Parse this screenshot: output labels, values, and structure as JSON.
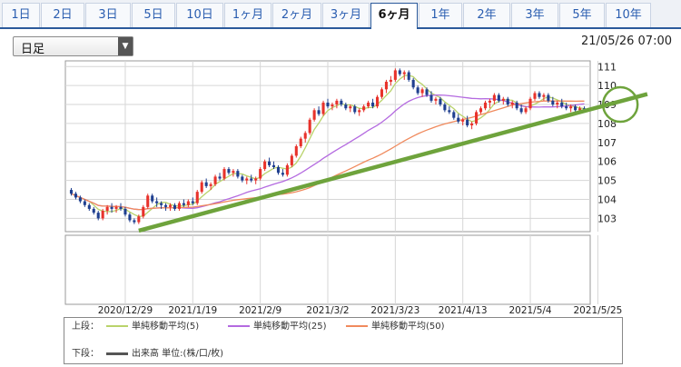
{
  "tabs": [
    "1日",
    "2日",
    "3日",
    "5日",
    "10日",
    "1ヶ月",
    "2ヶ月",
    "3ヶ月",
    "6ヶ月",
    "1年",
    "2年",
    "3年",
    "5年",
    "10年"
  ],
  "active_tab": "6ヶ月",
  "period_select": {
    "value": "日足"
  },
  "timestamp": "21/05/26 07:00",
  "colors": {
    "tab_accent": "#2b5a9b",
    "candle_up": "#e8322b",
    "candle_down": "#1f3f8f",
    "ma5": "#b9d36b",
    "ma25": "#b46ae0",
    "ma50": "#f08a5d",
    "trendline": "#6ea33c",
    "circle": "#6ea33c"
  },
  "legend": {
    "upper_label": "上段：",
    "lower_label": "下段：",
    "ma5_label": "単純移動平均(5)",
    "ma25_label": "単純移動平均(25)",
    "ma50_label": "単純移動平均(50)",
    "volume_label": "出来高 単位:(株/口/枚)"
  },
  "chart_data": {
    "type": "line",
    "title": "",
    "xlabel": "",
    "ylabel": "",
    "ylim": [
      102.3,
      111.3
    ],
    "y_ticks": [
      103,
      104,
      105,
      106,
      107,
      108,
      109,
      110,
      111
    ],
    "x_tick_labels": [
      "2020/12/29",
      "2021/1/19",
      "2021/2/9",
      "2021/3/2",
      "2021/3/23",
      "2021/4/13",
      "2021/5/4",
      "2021/5/25"
    ],
    "x_tick_index": [
      12,
      27,
      42,
      57,
      72,
      87,
      102,
      117
    ],
    "grid": true,
    "candles_ohlc": [
      [
        104.5,
        104.6,
        104.2,
        104.3
      ],
      [
        104.3,
        104.4,
        104.0,
        104.1
      ],
      [
        104.1,
        104.2,
        103.8,
        103.9
      ],
      [
        103.9,
        104.0,
        103.6,
        103.7
      ],
      [
        103.7,
        103.8,
        103.4,
        103.5
      ],
      [
        103.5,
        103.6,
        103.2,
        103.3
      ],
      [
        103.3,
        103.4,
        102.9,
        103.0
      ],
      [
        103.0,
        103.5,
        102.9,
        103.4
      ],
      [
        103.4,
        103.7,
        103.2,
        103.6
      ],
      [
        103.6,
        103.8,
        103.3,
        103.5
      ],
      [
        103.5,
        103.7,
        103.3,
        103.6
      ],
      [
        103.6,
        103.8,
        103.4,
        103.5
      ],
      [
        103.5,
        103.6,
        103.1,
        103.2
      ],
      [
        103.2,
        103.3,
        102.8,
        102.9
      ],
      [
        102.9,
        103.0,
        102.7,
        102.8
      ],
      [
        102.8,
        103.2,
        102.7,
        103.1
      ],
      [
        103.1,
        103.7,
        103.0,
        103.6
      ],
      [
        103.6,
        104.3,
        103.5,
        104.2
      ],
      [
        104.2,
        104.3,
        103.8,
        103.9
      ],
      [
        103.9,
        104.1,
        103.6,
        103.8
      ],
      [
        103.8,
        103.9,
        103.5,
        103.7
      ],
      [
        103.7,
        103.8,
        103.4,
        103.6
      ],
      [
        103.6,
        103.8,
        103.4,
        103.7
      ],
      [
        103.7,
        103.8,
        103.4,
        103.5
      ],
      [
        103.5,
        103.9,
        103.4,
        103.8
      ],
      [
        103.8,
        104.0,
        103.6,
        103.7
      ],
      [
        103.7,
        104.0,
        103.6,
        103.9
      ],
      [
        103.9,
        104.1,
        103.7,
        103.8
      ],
      [
        103.8,
        104.5,
        103.7,
        104.4
      ],
      [
        104.4,
        105.0,
        104.3,
        104.9
      ],
      [
        104.9,
        105.1,
        104.6,
        104.7
      ],
      [
        104.7,
        104.9,
        104.5,
        104.8
      ],
      [
        104.8,
        105.3,
        104.7,
        105.2
      ],
      [
        105.2,
        105.4,
        105.0,
        105.1
      ],
      [
        105.1,
        105.7,
        105.0,
        105.6
      ],
      [
        105.6,
        105.7,
        105.3,
        105.4
      ],
      [
        105.4,
        105.6,
        105.2,
        105.5
      ],
      [
        105.5,
        105.6,
        105.1,
        105.2
      ],
      [
        105.2,
        105.3,
        104.9,
        105.0
      ],
      [
        105.0,
        105.2,
        104.8,
        105.1
      ],
      [
        105.1,
        105.3,
        104.9,
        105.0
      ],
      [
        105.0,
        105.2,
        104.8,
        105.1
      ],
      [
        105.1,
        105.7,
        105.0,
        105.6
      ],
      [
        105.6,
        106.1,
        105.5,
        106.0
      ],
      [
        106.0,
        106.2,
        105.7,
        105.8
      ],
      [
        105.8,
        106.0,
        105.6,
        105.7
      ],
      [
        105.7,
        105.8,
        105.3,
        105.4
      ],
      [
        105.4,
        105.6,
        105.2,
        105.3
      ],
      [
        105.3,
        105.9,
        105.2,
        105.8
      ],
      [
        105.8,
        106.4,
        105.7,
        106.3
      ],
      [
        106.3,
        106.9,
        106.2,
        106.8
      ],
      [
        106.8,
        107.3,
        106.7,
        107.2
      ],
      [
        107.2,
        107.6,
        107.0,
        107.5
      ],
      [
        107.5,
        108.3,
        107.4,
        108.2
      ],
      [
        108.2,
        108.8,
        108.1,
        108.7
      ],
      [
        108.7,
        108.9,
        108.4,
        108.5
      ],
      [
        108.5,
        109.2,
        108.4,
        109.1
      ],
      [
        109.1,
        109.3,
        108.8,
        108.9
      ],
      [
        108.9,
        109.1,
        108.7,
        109.0
      ],
      [
        109.0,
        109.3,
        108.8,
        109.2
      ],
      [
        109.2,
        109.3,
        108.9,
        109.0
      ],
      [
        109.0,
        109.1,
        108.7,
        108.8
      ],
      [
        108.8,
        109.0,
        108.6,
        108.9
      ],
      [
        108.9,
        109.0,
        108.5,
        108.6
      ],
      [
        108.6,
        108.8,
        108.4,
        108.7
      ],
      [
        108.7,
        109.0,
        108.6,
        108.9
      ],
      [
        108.9,
        109.2,
        108.8,
        109.1
      ],
      [
        109.1,
        109.3,
        108.8,
        108.9
      ],
      [
        108.9,
        109.5,
        108.8,
        109.4
      ],
      [
        109.4,
        109.9,
        109.3,
        109.8
      ],
      [
        109.8,
        110.3,
        109.6,
        110.2
      ],
      [
        110.2,
        110.5,
        110.0,
        110.3
      ],
      [
        110.3,
        110.9,
        110.2,
        110.8
      ],
      [
        110.8,
        110.9,
        110.5,
        110.6
      ],
      [
        110.6,
        110.8,
        110.3,
        110.7
      ],
      [
        110.7,
        110.8,
        110.2,
        110.3
      ],
      [
        110.3,
        110.4,
        109.8,
        109.9
      ],
      [
        109.9,
        110.0,
        109.5,
        109.6
      ],
      [
        109.6,
        109.9,
        109.4,
        109.8
      ],
      [
        109.8,
        109.9,
        109.4,
        109.5
      ],
      [
        109.5,
        109.7,
        109.1,
        109.2
      ],
      [
        109.2,
        109.4,
        109.0,
        109.3
      ],
      [
        109.3,
        109.4,
        108.9,
        109.0
      ],
      [
        109.0,
        109.1,
        108.6,
        108.7
      ],
      [
        108.7,
        108.9,
        108.5,
        108.6
      ],
      [
        108.6,
        108.7,
        108.2,
        108.3
      ],
      [
        108.3,
        108.5,
        108.0,
        108.1
      ],
      [
        108.1,
        108.3,
        107.9,
        108.2
      ],
      [
        108.2,
        108.4,
        107.8,
        107.9
      ],
      [
        107.9,
        108.1,
        107.7,
        108.0
      ],
      [
        108.0,
        108.7,
        107.9,
        108.6
      ],
      [
        108.6,
        108.9,
        108.5,
        108.8
      ],
      [
        108.8,
        109.2,
        108.7,
        109.1
      ],
      [
        109.1,
        109.3,
        108.8,
        109.2
      ],
      [
        109.2,
        109.6,
        109.0,
        109.5
      ],
      [
        109.5,
        109.6,
        109.1,
        109.2
      ],
      [
        109.2,
        109.4,
        109.0,
        109.3
      ],
      [
        109.3,
        109.4,
        108.9,
        109.0
      ],
      [
        109.0,
        109.2,
        108.8,
        109.1
      ],
      [
        109.1,
        109.2,
        108.7,
        108.8
      ],
      [
        108.8,
        109.0,
        108.5,
        108.6
      ],
      [
        108.6,
        108.9,
        108.5,
        108.8
      ],
      [
        108.8,
        109.4,
        108.7,
        109.3
      ],
      [
        109.3,
        109.7,
        109.2,
        109.6
      ],
      [
        109.6,
        109.7,
        109.3,
        109.4
      ],
      [
        109.4,
        109.6,
        109.2,
        109.5
      ],
      [
        109.5,
        109.6,
        109.1,
        109.2
      ],
      [
        109.2,
        109.4,
        108.9,
        109.0
      ],
      [
        109.0,
        109.2,
        108.8,
        109.1
      ],
      [
        109.1,
        109.3,
        108.8,
        108.9
      ],
      [
        108.9,
        109.1,
        108.7,
        108.8
      ],
      [
        108.8,
        109.0,
        108.6,
        108.9
      ],
      [
        108.9,
        109.0,
        108.6,
        108.7
      ],
      [
        108.7,
        108.9,
        108.6,
        108.8
      ],
      [
        108.8,
        108.9,
        108.6,
        108.7
      ]
    ],
    "ma_series": [
      {
        "name": "単純移動平均(5)",
        "key": "ma5",
        "period": 5
      },
      {
        "name": "単純移動平均(25)",
        "key": "ma25",
        "period": 25
      },
      {
        "name": "単純移動平均(50)",
        "key": "ma50",
        "period": 50
      }
    ],
    "annotations": {
      "trendline": {
        "from": [
          15,
          102.35
        ],
        "to": [
          128,
          109.55
        ]
      },
      "circle": {
        "x": 122,
        "y": 109.0
      }
    }
  }
}
